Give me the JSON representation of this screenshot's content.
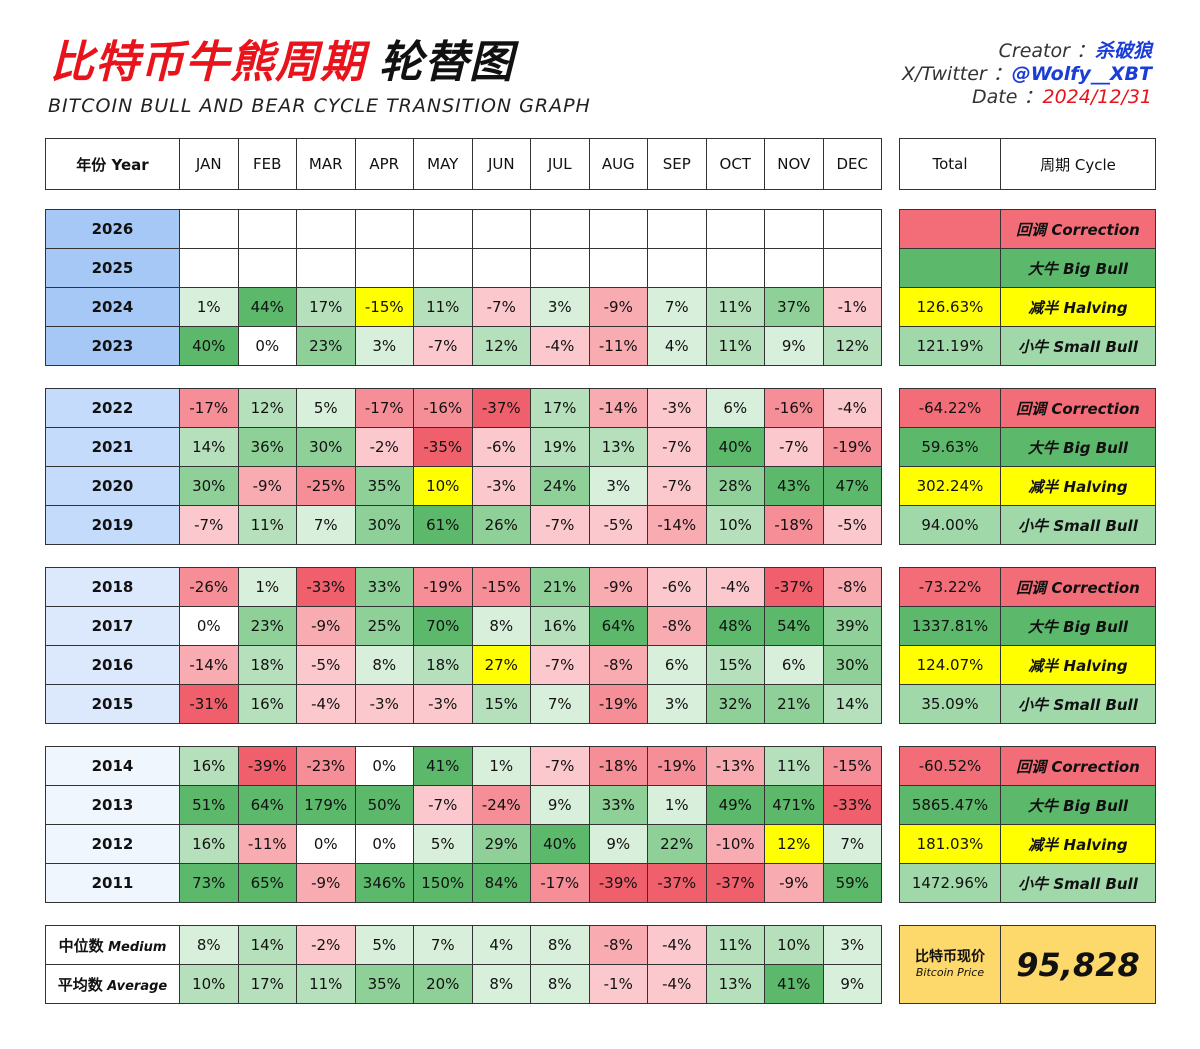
{
  "header": {
    "title_cn": "比特币牛熊周期",
    "title_cn_2": "轮替图",
    "title_en": "BITCOIN BULL AND BEAR CYCLE TRANSITION GRAPH",
    "creator_label": "Creator ：",
    "creator_value": "杀破狼",
    "twitter_label": "X/Twitter ：",
    "twitter_value": "@Wolfy__XBT",
    "date_label": "Date ：",
    "date_value": "2024/12/31"
  },
  "colors": {
    "year_blue_1": "#a6c8f7",
    "year_blue_2": "#c4dbfb",
    "year_blue_3": "#dce9fd",
    "year_blue_4": "#f0f6fe",
    "correction": "#f26d78",
    "big_bull": "#5cb86a",
    "halving": "#ffff00",
    "small_bull": "#a0d8aa",
    "price_bg": "#fdd86a"
  },
  "chart_data": {
    "type": "table",
    "columns": [
      "年份 Year",
      "JAN",
      "FEB",
      "MAR",
      "APR",
      "MAY",
      "JUN",
      "JUL",
      "AUG",
      "SEP",
      "OCT",
      "NOV",
      "DEC"
    ],
    "summary_columns": [
      "Total",
      "周期 Cycle"
    ],
    "groups": [
      {
        "rows": [
          {
            "year": "2026",
            "values": [
              null,
              null,
              null,
              null,
              null,
              null,
              null,
              null,
              null,
              null,
              null,
              null
            ],
            "total": "",
            "cycle": "回调 Correction",
            "cycle_type": "correction",
            "halving_month": null
          },
          {
            "year": "2025",
            "values": [
              null,
              null,
              null,
              null,
              null,
              null,
              null,
              null,
              null,
              null,
              null,
              null
            ],
            "total": "",
            "cycle": "大牛 Big Bull",
            "cycle_type": "big_bull",
            "halving_month": null
          },
          {
            "year": "2024",
            "values": [
              1,
              44,
              17,
              -15,
              11,
              -7,
              3,
              -9,
              7,
              11,
              37,
              -1
            ],
            "total": "126.63%",
            "cycle": "减半 Halving",
            "cycle_type": "halving",
            "halving_month": 3
          },
          {
            "year": "2023",
            "values": [
              40,
              0,
              23,
              3,
              -7,
              12,
              -4,
              -11,
              4,
              11,
              9,
              12
            ],
            "total": "121.19%",
            "cycle": "小牛 Small Bull",
            "cycle_type": "small_bull",
            "halving_month": null
          }
        ]
      },
      {
        "rows": [
          {
            "year": "2022",
            "values": [
              -17,
              12,
              5,
              -17,
              -16,
              -37,
              17,
              -14,
              -3,
              6,
              -16,
              -4
            ],
            "total": "-64.22%",
            "cycle": "回调 Correction",
            "cycle_type": "correction",
            "halving_month": null
          },
          {
            "year": "2021",
            "values": [
              14,
              36,
              30,
              -2,
              -35,
              -6,
              19,
              13,
              -7,
              40,
              -7,
              -19
            ],
            "total": "59.63%",
            "cycle": "大牛 Big Bull",
            "cycle_type": "big_bull",
            "halving_month": null
          },
          {
            "year": "2020",
            "values": [
              30,
              -9,
              -25,
              35,
              10,
              -3,
              24,
              3,
              -7,
              28,
              43,
              47
            ],
            "total": "302.24%",
            "cycle": "减半 Halving",
            "cycle_type": "halving",
            "halving_month": 4
          },
          {
            "year": "2019",
            "values": [
              -7,
              11,
              7,
              30,
              61,
              26,
              -7,
              -5,
              -14,
              10,
              -18,
              -5
            ],
            "total": "94.00%",
            "cycle": "小牛 Small Bull",
            "cycle_type": "small_bull",
            "halving_month": null
          }
        ]
      },
      {
        "rows": [
          {
            "year": "2018",
            "values": [
              -26,
              1,
              -33,
              33,
              -19,
              -15,
              21,
              -9,
              -6,
              -4,
              -37,
              -8
            ],
            "total": "-73.22%",
            "cycle": "回调 Correction",
            "cycle_type": "correction",
            "halving_month": null
          },
          {
            "year": "2017",
            "values": [
              0,
              23,
              -9,
              25,
              70,
              8,
              16,
              64,
              -8,
              48,
              54,
              39
            ],
            "total": "1337.81%",
            "cycle": "大牛 Big Bull",
            "cycle_type": "big_bull",
            "halving_month": null
          },
          {
            "year": "2016",
            "values": [
              -14,
              18,
              -5,
              8,
              18,
              27,
              -7,
              -8,
              6,
              15,
              6,
              30
            ],
            "total": "124.07%",
            "cycle": "减半 Halving",
            "cycle_type": "halving",
            "halving_month": 5
          },
          {
            "year": "2015",
            "values": [
              -31,
              16,
              -4,
              -3,
              -3,
              15,
              7,
              -19,
              3,
              32,
              21,
              14
            ],
            "total": "35.09%",
            "cycle": "小牛 Small Bull",
            "cycle_type": "small_bull",
            "halving_month": null
          }
        ]
      },
      {
        "rows": [
          {
            "year": "2014",
            "values": [
              16,
              -39,
              -23,
              0,
              41,
              1,
              -7,
              -18,
              -19,
              -13,
              11,
              -15
            ],
            "total": "-60.52%",
            "cycle": "回调 Correction",
            "cycle_type": "correction",
            "halving_month": null
          },
          {
            "year": "2013",
            "values": [
              51,
              64,
              179,
              50,
              -7,
              -24,
              9,
              33,
              1,
              49,
              471,
              -33
            ],
            "total": "5865.47%",
            "cycle": "大牛 Big Bull",
            "cycle_type": "big_bull",
            "halving_month": null
          },
          {
            "year": "2012",
            "values": [
              16,
              -11,
              0,
              0,
              5,
              29,
              40,
              9,
              22,
              -10,
              12,
              7
            ],
            "total": "181.03%",
            "cycle": "减半 Halving",
            "cycle_type": "halving",
            "halving_month": 10
          },
          {
            "year": "2011",
            "values": [
              73,
              65,
              -9,
              346,
              150,
              84,
              -17,
              -39,
              -37,
              -37,
              -9,
              59
            ],
            "total": "1472.96%",
            "cycle": "小牛 Small Bull",
            "cycle_type": "small_bull",
            "halving_month": null
          }
        ]
      }
    ],
    "stats": [
      {
        "label_cn": "中位数",
        "label_en": "Medium",
        "values": [
          8,
          14,
          -2,
          5,
          7,
          4,
          8,
          -8,
          -4,
          11,
          10,
          3
        ]
      },
      {
        "label_cn": "平均数",
        "label_en": "Average",
        "values": [
          10,
          17,
          11,
          35,
          20,
          8,
          8,
          -1,
          -4,
          13,
          41,
          9
        ]
      }
    ],
    "price": {
      "label_cn": "比特币现价",
      "label_en": "Bitcoin Price",
      "value": "95,828"
    }
  }
}
